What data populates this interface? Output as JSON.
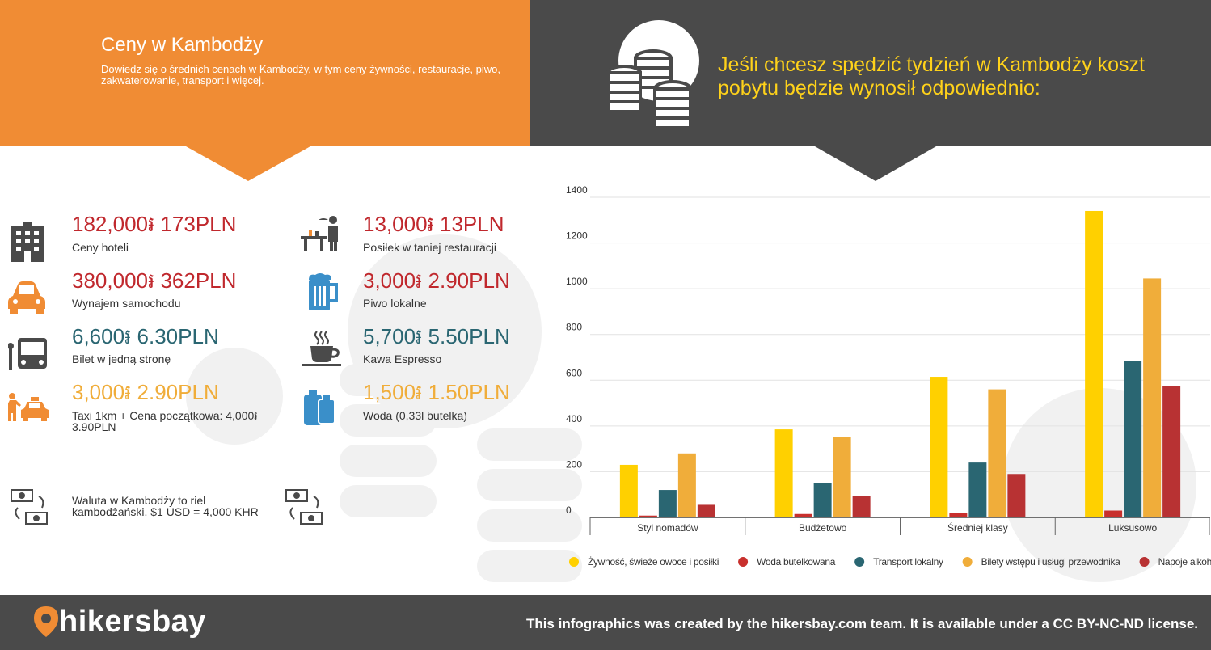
{
  "header": {
    "title": "Ceny w Kambodży",
    "subtitle": "Dowiedz się o średnich cenach w Kambodży, w tym ceny żywności, restauracje, piwo, zakwaterowanie, transport i więcej.",
    "headline": "Jeśli chcesz spędzić tydzień w Kambodży koszt pobytu będzie wynosił odpowiednio:"
  },
  "prices": [
    {
      "price": "182,000៛ 173PLN",
      "label": "Ceny hoteli",
      "icon": "hotel-icon",
      "color": "#c0282d"
    },
    {
      "price": "380,000៛ 362PLN",
      "label": "Wynajem samochodu",
      "icon": "car-icon",
      "color": "#c0282d"
    },
    {
      "price": "6,600៛ 6.30PLN",
      "label": "Bilet w jedną stronę",
      "icon": "bus-icon",
      "color": "#2a6672"
    },
    {
      "price": "3,000៛ 2.90PLN",
      "label": "Taxi 1km + Cena początkowa: 4,000៛ 3.90PLN",
      "icon": "taxi-icon",
      "color": "#f0ad3a"
    },
    {
      "price": "13,000៛ 13PLN",
      "label": "Posiłek w taniej restauracji",
      "icon": "restaurant-icon",
      "color": "#c0282d"
    },
    {
      "price": "3,000៛ 2.90PLN",
      "label": "Piwo lokalne",
      "icon": "beer-icon",
      "color": "#c0282d"
    },
    {
      "price": "5,700៛ 5.50PLN",
      "label": "Kawa Espresso",
      "icon": "coffee-icon",
      "color": "#2a6672"
    },
    {
      "price": "1,500៛ 1.50PLN",
      "label": "Woda (0,33l butelka)",
      "icon": "water-icon",
      "color": "#f0ad3a"
    }
  ],
  "currency_note": "Waluta w Kambodży to riel kambodżański. $1 USD = 4,000 KHR",
  "footer": {
    "logo": "hikersbay",
    "license": "This infographics was created by the hikersbay.com team. It is available under a CC BY-NC-ND license."
  },
  "chart_data": {
    "type": "bar",
    "categories": [
      "Styl nomadów",
      "Budżetowo",
      "Średniej klasy",
      "Luksusowo"
    ],
    "series": [
      {
        "name": "Żywność, świeże owoce i posiłki",
        "color": "#ffd000",
        "values": [
          230,
          385,
          615,
          1340
        ]
      },
      {
        "name": "Woda butelkowana",
        "color": "#c8302d",
        "values": [
          8,
          15,
          18,
          30
        ]
      },
      {
        "name": "Transport lokalny",
        "color": "#2a6672",
        "values": [
          120,
          150,
          240,
          685
        ]
      },
      {
        "name": "Bilety wstępu i usługi przewodnika",
        "color": "#f0ad3a",
        "values": [
          280,
          350,
          560,
          1045
        ]
      },
      {
        "name": "Napoje alkoholowe",
        "color": "#b83233",
        "values": [
          55,
          95,
          190,
          575
        ]
      }
    ],
    "yticks": [
      "0",
      "200",
      "400",
      "600",
      "800",
      "1000",
      "1200",
      "1400"
    ],
    "ylim": [
      0,
      1400
    ],
    "grid": true,
    "legend": "bottom"
  }
}
